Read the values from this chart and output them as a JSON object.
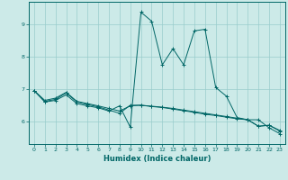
{
  "xlabel": "Humidex (Indice chaleur)",
  "bg_color": "#cceae8",
  "line_color": "#006666",
  "grid_color": "#99cccc",
  "xlim": [
    -0.5,
    23.5
  ],
  "ylim": [
    5.3,
    9.7
  ],
  "xticks": [
    0,
    1,
    2,
    3,
    4,
    5,
    6,
    7,
    8,
    9,
    10,
    11,
    12,
    13,
    14,
    15,
    16,
    17,
    18,
    19,
    20,
    21,
    22,
    23
  ],
  "yticks": [
    6,
    7,
    8,
    9
  ],
  "line1_x": [
    0,
    1,
    2,
    3,
    4,
    5,
    6,
    7,
    8,
    9,
    10,
    11,
    12,
    13,
    14,
    15,
    16,
    17,
    18,
    19,
    20,
    21,
    22,
    23
  ],
  "line1_y": [
    6.95,
    6.65,
    6.72,
    6.9,
    6.62,
    6.55,
    6.48,
    6.4,
    6.32,
    6.48,
    6.5,
    6.47,
    6.44,
    6.4,
    6.35,
    6.3,
    6.25,
    6.2,
    6.15,
    6.1,
    6.05,
    5.85,
    5.88,
    5.72
  ],
  "line2_x": [
    0,
    1,
    2,
    3,
    4,
    5,
    6,
    7,
    8,
    9,
    10,
    11,
    12,
    13,
    14,
    15,
    16,
    17,
    18,
    19,
    20,
    21,
    22,
    23
  ],
  "line2_y": [
    6.95,
    6.6,
    6.65,
    6.82,
    6.55,
    6.48,
    6.42,
    6.32,
    6.48,
    5.82,
    9.38,
    9.1,
    7.75,
    8.25,
    7.75,
    8.8,
    8.85,
    7.05,
    6.78,
    6.12,
    6.05,
    6.05,
    5.8,
    5.62
  ],
  "line3_x": [
    0,
    1,
    2,
    3,
    4,
    5,
    6,
    7,
    8,
    9,
    10,
    11,
    12,
    13,
    14,
    15,
    16,
    17,
    18,
    19,
    20,
    21,
    22,
    23
  ],
  "line3_y": [
    6.95,
    6.62,
    6.68,
    6.88,
    6.6,
    6.52,
    6.45,
    6.35,
    6.25,
    6.5,
    6.5,
    6.46,
    6.43,
    6.38,
    6.33,
    6.28,
    6.22,
    6.18,
    6.13,
    6.08,
    6.05,
    5.85,
    5.88,
    5.7
  ]
}
